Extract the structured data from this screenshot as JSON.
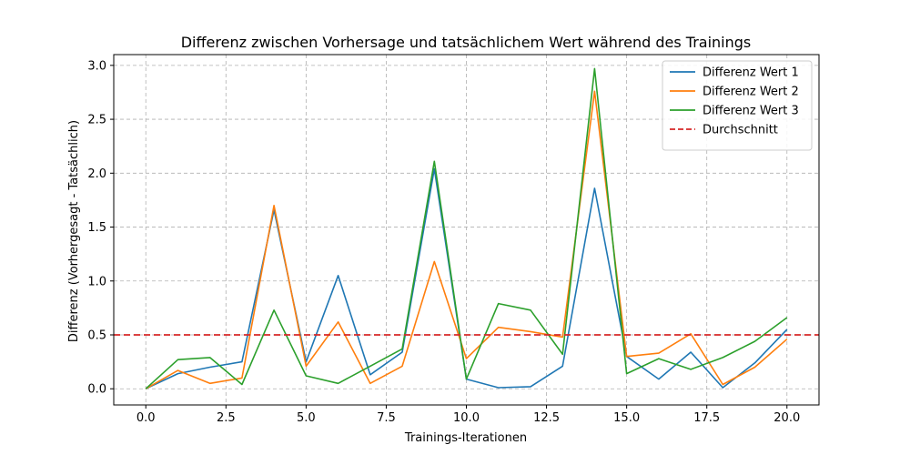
{
  "chart_data": {
    "type": "line",
    "title": "Differenz zwischen Vorhersage und tatsächlichem Wert während des Trainings",
    "xlabel": "Trainings-Iterationen",
    "ylabel": "Differenz (Vorhergesagt - Tatsächlich)",
    "xlim": [
      -1,
      21
    ],
    "ylim": [
      -0.15,
      3.1
    ],
    "xticks": [
      0,
      2.5,
      5,
      7.5,
      10,
      12.5,
      15,
      17.5,
      20
    ],
    "xtick_labels": [
      "0.0",
      "2.5",
      "5.0",
      "7.5",
      "10.0",
      "12.5",
      "15.0",
      "17.5",
      "20.0"
    ],
    "yticks": [
      0,
      0.5,
      1,
      1.5,
      2,
      2.5,
      3
    ],
    "ytick_labels": [
      "0.0",
      "0.5",
      "1.0",
      "1.5",
      "2.0",
      "2.5",
      "3.0"
    ],
    "grid": true,
    "legend_position": "top-right",
    "x": [
      0,
      1,
      2,
      3,
      4,
      5,
      6,
      7,
      8,
      9,
      10,
      11,
      12,
      13,
      14,
      15,
      16,
      17,
      18,
      19,
      20
    ],
    "series": [
      {
        "name": "Differenz Wert 1",
        "color": "#1f77b4",
        "style": "solid",
        "values": [
          0.0,
          0.14,
          0.2,
          0.25,
          1.66,
          0.25,
          1.05,
          0.13,
          0.34,
          2.04,
          0.09,
          0.01,
          0.02,
          0.21,
          1.86,
          0.3,
          0.09,
          0.34,
          0.01,
          0.24,
          0.55
        ]
      },
      {
        "name": "Differenz Wert 2",
        "color": "#ff7f0e",
        "style": "solid",
        "values": [
          0.0,
          0.17,
          0.05,
          0.1,
          1.7,
          0.21,
          0.62,
          0.05,
          0.21,
          1.18,
          0.28,
          0.57,
          0.53,
          0.48,
          2.76,
          0.3,
          0.33,
          0.51,
          0.04,
          0.2,
          0.46
        ]
      },
      {
        "name": "Differenz Wert 3",
        "color": "#2ca02c",
        "style": "solid",
        "values": [
          0.0,
          0.27,
          0.29,
          0.04,
          0.73,
          0.12,
          0.05,
          0.21,
          0.37,
          2.11,
          0.09,
          0.79,
          0.73,
          0.32,
          2.97,
          0.14,
          0.28,
          0.18,
          0.29,
          0.44,
          0.66
        ]
      }
    ],
    "reference_lines": [
      {
        "name": "Durchschnitt",
        "color": "#d62728",
        "style": "dashed",
        "y": 0.5
      }
    ]
  }
}
